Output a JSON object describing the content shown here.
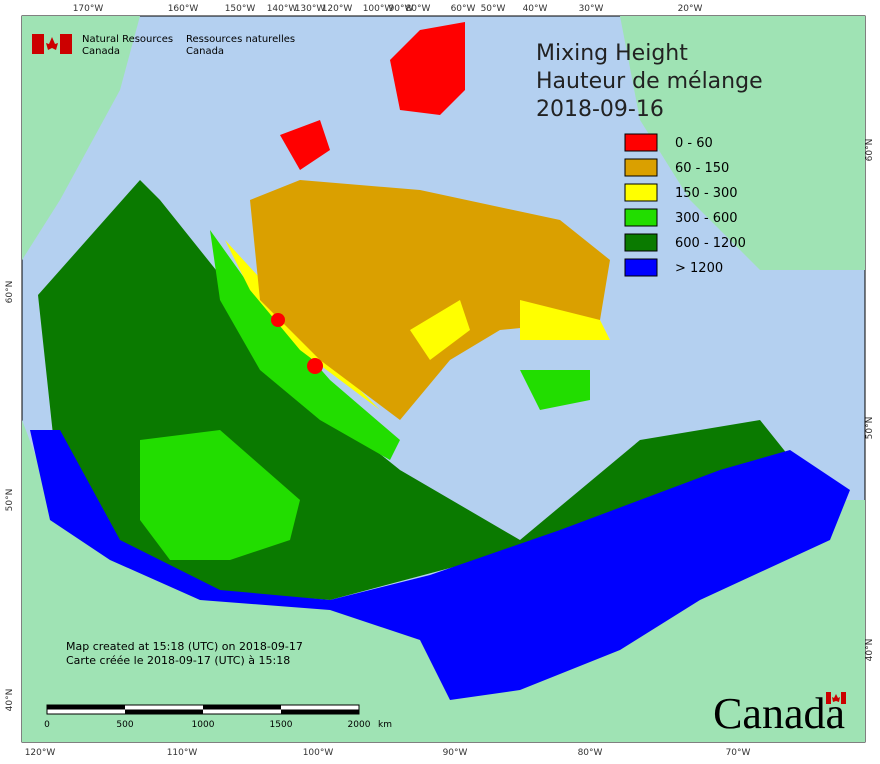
{
  "header": {
    "dept_en_1": "Natural Resources",
    "dept_en_2": "Canada",
    "dept_fr_1": "Ressources naturelles",
    "dept_fr_2": "Canada"
  },
  "title": {
    "line1": "Mixing Height",
    "line2": "Hauteur de mélange",
    "date": "2018-09-16"
  },
  "legend": [
    {
      "label": "0 - 60",
      "color": "#ff0000"
    },
    {
      "label": "60 - 150",
      "color": "#daa000"
    },
    {
      "label": "150 - 300",
      "color": "#ffff00"
    },
    {
      "label": "300 - 600",
      "color": "#22dd00"
    },
    {
      "label": "600 - 1200",
      "color": "#0a7a00"
    },
    {
      "label": "> 1200",
      "color": "#0000ff"
    }
  ],
  "axes": {
    "top": [
      "170°W",
      "160°W",
      "150°W",
      "140°W",
      "130°W",
      "120°W",
      "100°W",
      "90°W",
      "80°W",
      "60°W",
      "50°W",
      "40°W",
      "30°W",
      "20°W"
    ],
    "bottom": [
      "120°W",
      "110°W",
      "100°W",
      "90°W",
      "80°W",
      "70°W"
    ],
    "left": [
      "60°N",
      "50°N",
      "40°N"
    ],
    "right": [
      "60°N",
      "50°N",
      "40°N"
    ]
  },
  "footer": {
    "created_en": "Map created at 15:18 (UTC) on 2018-09-17",
    "created_fr": "Carte créée le 2018-09-17 (UTC) à 15:18"
  },
  "scale": {
    "labels": [
      "0",
      "500",
      "1000",
      "1500",
      "2000"
    ],
    "unit": "km"
  },
  "wordmark": "Canada"
}
